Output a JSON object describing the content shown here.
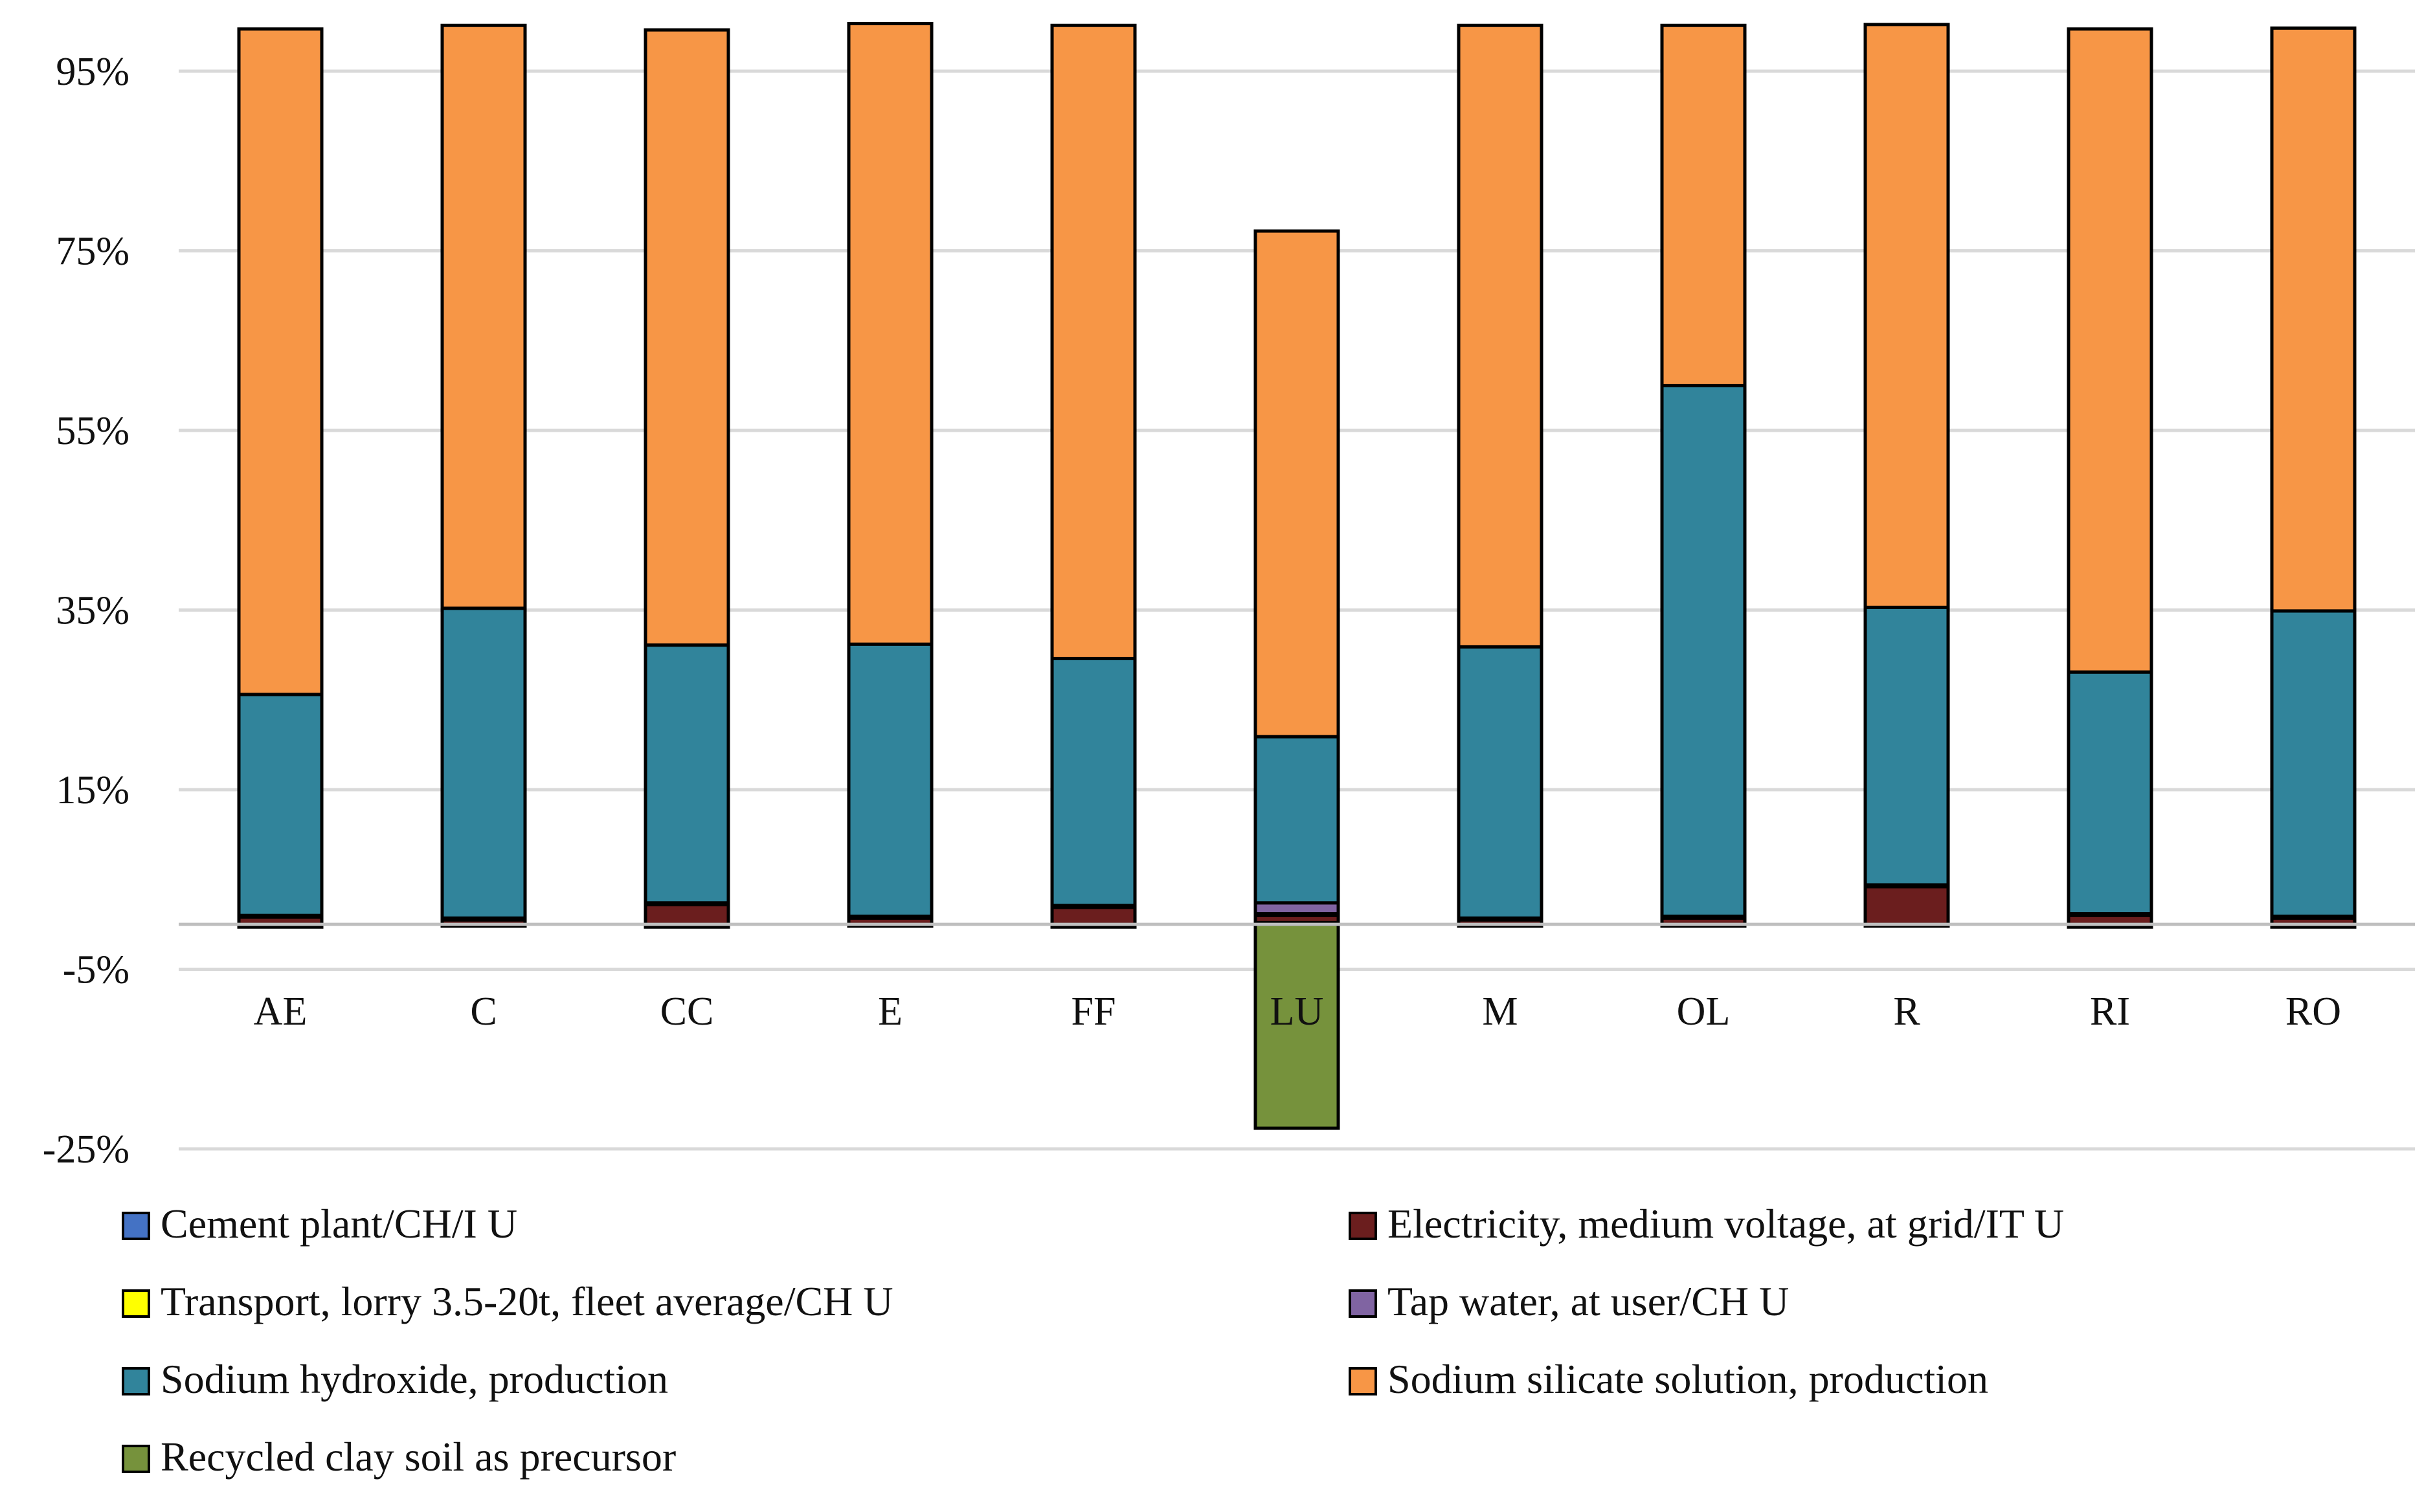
{
  "chart_data": {
    "type": "bar",
    "stacked": true,
    "title": "",
    "xlabel": "",
    "ylabel": "",
    "ylim": [
      -25,
      100
    ],
    "yticks": [
      -25,
      -5,
      15,
      35,
      55,
      75,
      95
    ],
    "ytick_labels": [
      "-25%",
      "-5%",
      "15%",
      "35%",
      "55%",
      "75%",
      "95%"
    ],
    "gridlines": true,
    "legend_position": "bottom",
    "categories": [
      "AE",
      "C",
      "CC",
      "E",
      "FF",
      "LU",
      "M",
      "OL",
      "R",
      "RI",
      "RO"
    ],
    "series": [
      {
        "name": "Cement plant/CH/I U",
        "color": "#4472C4",
        "values": [
          -0.3,
          -0.2,
          -0.3,
          -0.2,
          -0.3,
          0.2,
          -0.2,
          -0.2,
          -0.2,
          -0.3,
          -0.3
        ]
      },
      {
        "name": "Electricity, medium voltage, at grid/IT U",
        "color": "#6B1E1E",
        "values": [
          0.8,
          0.5,
          2.2,
          0.7,
          1.9,
          0.8,
          0.5,
          0.7,
          4.2,
          1.0,
          0.7
        ]
      },
      {
        "name": "Transport, lorry 3.5-20t, fleet average/CH U",
        "color": "#FFFF00",
        "values": [
          0.1,
          0.1,
          0.1,
          0.1,
          0.1,
          0.2,
          0.1,
          0.1,
          0.1,
          0.1,
          0.1
        ]
      },
      {
        "name": "Tap water, at user/CH U",
        "color": "#8064A2",
        "values": [
          0.1,
          0.1,
          0.1,
          0.1,
          0.1,
          1.2,
          0.1,
          0.1,
          0.1,
          0.1,
          0.1
        ]
      },
      {
        "name": "Sodium hydroxide, production",
        "color": "#31849B",
        "values": [
          24.6,
          34.5,
          28.7,
          30.3,
          27.5,
          18.5,
          30.2,
          59.1,
          30.9,
          26.9,
          34.0
        ]
      },
      {
        "name": "Sodium silicate solution, production",
        "color": "#F79646",
        "values": [
          74.1,
          64.9,
          68.5,
          69.1,
          70.5,
          56.3,
          69.2,
          40.1,
          64.9,
          71.6,
          64.9
        ]
      },
      {
        "name": "Recycled clay soil as precursor",
        "color": "#76923C",
        "values": [
          0,
          0,
          0,
          0,
          0,
          -22.7,
          0,
          0,
          0,
          0,
          0
        ]
      }
    ]
  }
}
